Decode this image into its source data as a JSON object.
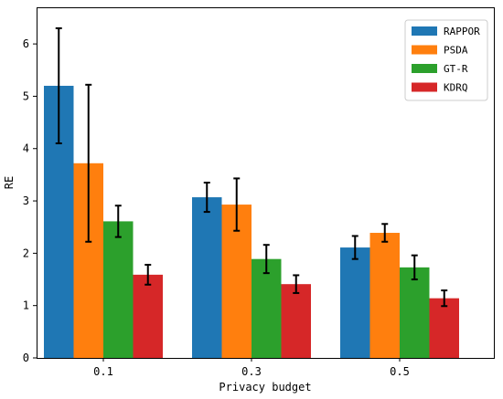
{
  "chart_data": {
    "type": "bar",
    "title": "",
    "xlabel": "Privacy budget",
    "ylabel": "RE",
    "categories": [
      "0.1",
      "0.3",
      "0.5"
    ],
    "ylim": [
      0,
      6.7
    ],
    "yticks": [
      0,
      1,
      2,
      3,
      4,
      5,
      6
    ],
    "grid": false,
    "legend_position": "top-right",
    "error_bars": true,
    "series": [
      {
        "name": "RAPPOR",
        "color": "#1f77b4",
        "values": [
          5.2,
          3.07,
          2.11
        ],
        "errors": [
          1.1,
          0.28,
          0.22
        ]
      },
      {
        "name": "PSDA",
        "color": "#ff7f0e",
        "values": [
          3.72,
          2.93,
          2.39
        ],
        "errors": [
          1.5,
          0.5,
          0.17
        ]
      },
      {
        "name": "GT-R",
        "color": "#2ca02c",
        "values": [
          2.61,
          1.89,
          1.73
        ],
        "errors": [
          0.3,
          0.27,
          0.23
        ]
      },
      {
        "name": "KDRQ",
        "color": "#d62728",
        "values": [
          1.59,
          1.41,
          1.14
        ],
        "errors": [
          0.19,
          0.17,
          0.15
        ]
      }
    ]
  }
}
